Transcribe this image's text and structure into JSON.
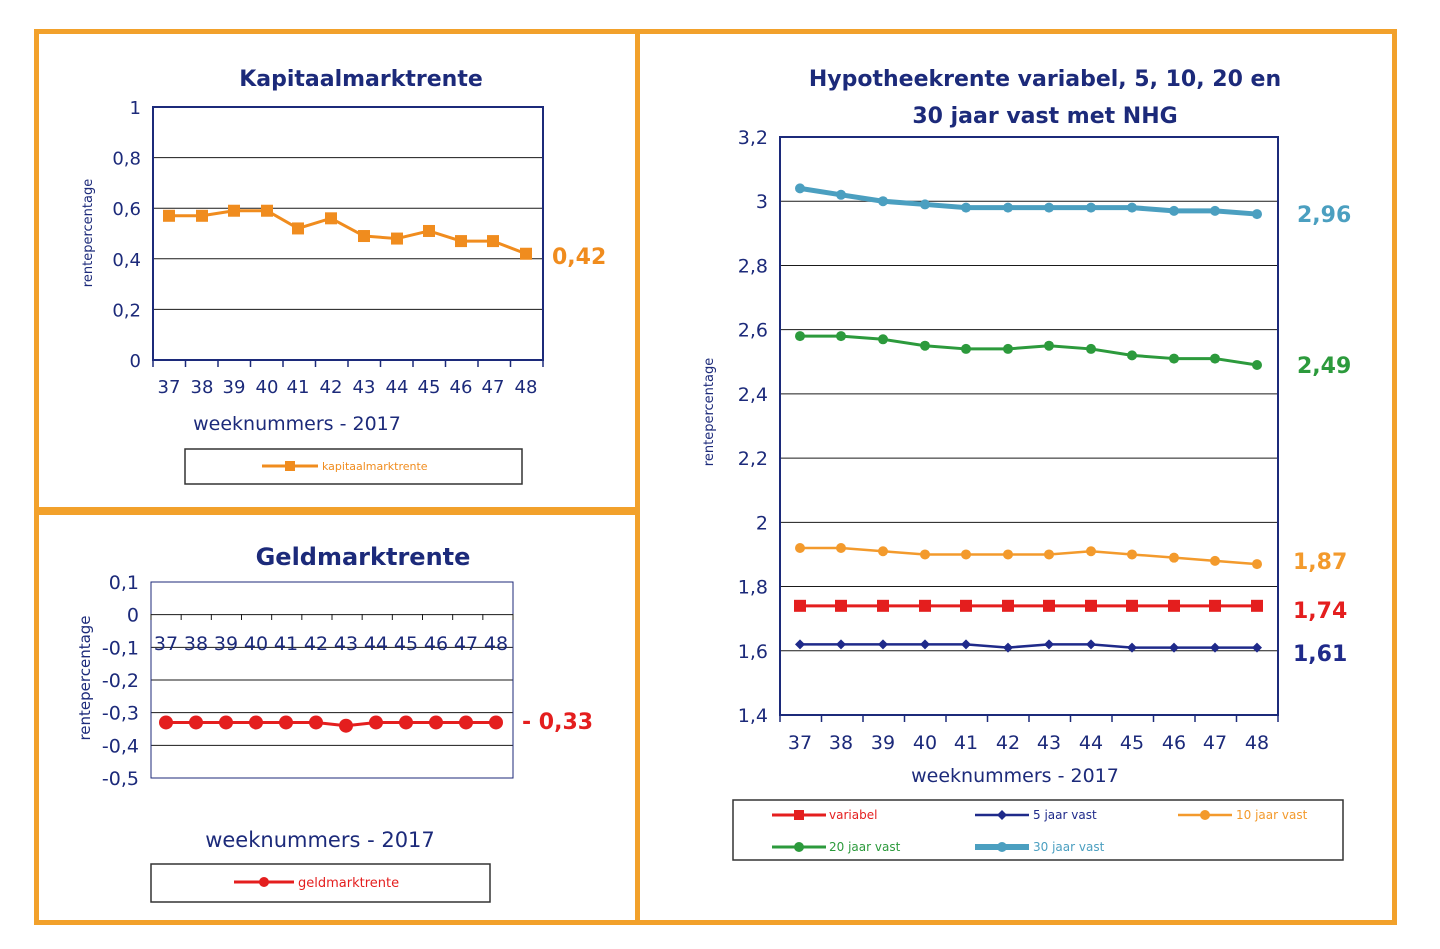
{
  "colors": {
    "frame": "#f2a12b",
    "text": "#1c2a7a",
    "kapitaal": "#f08c1e",
    "geld": "#e41e1e",
    "variabel": "#e41e1e",
    "vast5": "#1f2a8a",
    "vast10": "#f39a2c",
    "vast20": "#2c9a3c",
    "vast30": "#4b9fc0"
  },
  "chart_data": [
    {
      "id": "kapitaal",
      "type": "line",
      "title": "Kapitaalmarktrente",
      "ylabel": "rentepercentage",
      "xlabel": "weeknummers - 2017",
      "categories": [
        "37",
        "38",
        "39",
        "40",
        "41",
        "42",
        "43",
        "44",
        "45",
        "46",
        "47",
        "48"
      ],
      "ylim": [
        0,
        1
      ],
      "yticks": [
        "0",
        "0,2",
        "0,4",
        "0,6",
        "0,8",
        "1"
      ],
      "grid": true,
      "legend_position": "bottom",
      "series": [
        {
          "name": "kapitaalmarktrente",
          "color": "#f08c1e",
          "values": [
            0.57,
            0.57,
            0.59,
            0.59,
            0.52,
            0.56,
            0.49,
            0.48,
            0.51,
            0.47,
            0.47,
            0.42
          ]
        }
      ],
      "end_labels": [
        "0,42"
      ]
    },
    {
      "id": "geld",
      "type": "line",
      "title": "Geldmarktrente",
      "ylabel": "rentepercentage",
      "xlabel": "weeknummers - 2017",
      "categories": [
        "37",
        "38",
        "39",
        "40",
        "41",
        "42",
        "43",
        "44",
        "45",
        "46",
        "47",
        "48"
      ],
      "ylim": [
        -0.5,
        0.1
      ],
      "yticks": [
        "-0,5",
        "-0,4",
        "-0,3",
        "-0,2",
        "-0,1",
        "0",
        "0,1"
      ],
      "grid": true,
      "legend_position": "bottom",
      "series": [
        {
          "name": "geldmarktrente",
          "color": "#e41e1e",
          "values": [
            -0.33,
            -0.33,
            -0.33,
            -0.33,
            -0.33,
            -0.33,
            -0.34,
            -0.33,
            -0.33,
            -0.33,
            -0.33,
            -0.33
          ]
        }
      ],
      "end_labels": [
        "- 0,33"
      ]
    },
    {
      "id": "hypotheek",
      "type": "line",
      "title": "Hypotheekrente variabel, 5, 10, 20 en 30 jaar vast met NHG",
      "title_lines": [
        "Hypotheekrente variabel, 5, 10, 20 en",
        "30 jaar vast met NHG"
      ],
      "ylabel": "rentepercentage",
      "xlabel": "weeknummers - 2017",
      "categories": [
        "37",
        "38",
        "39",
        "40",
        "41",
        "42",
        "43",
        "44",
        "45",
        "46",
        "47",
        "48"
      ],
      "ylim": [
        1.4,
        3.2
      ],
      "yticks": [
        "1,4",
        "1,6",
        "1,8",
        "2",
        "2,2",
        "2,4",
        "2,6",
        "2,8",
        "3",
        "3,2"
      ],
      "grid": true,
      "legend_position": "bottom",
      "series": [
        {
          "name": "variabel",
          "color": "#e41e1e",
          "values": [
            1.74,
            1.74,
            1.74,
            1.74,
            1.74,
            1.74,
            1.74,
            1.74,
            1.74,
            1.74,
            1.74,
            1.74
          ]
        },
        {
          "name": "5 jaar vast",
          "color": "#1f2a8a",
          "values": [
            1.62,
            1.62,
            1.62,
            1.62,
            1.62,
            1.61,
            1.62,
            1.62,
            1.61,
            1.61,
            1.61,
            1.61
          ]
        },
        {
          "name": "10 jaar vast",
          "color": "#f39a2c",
          "values": [
            1.92,
            1.92,
            1.91,
            1.9,
            1.9,
            1.9,
            1.9,
            1.91,
            1.9,
            1.89,
            1.88,
            1.87
          ]
        },
        {
          "name": "20 jaar vast",
          "color": "#2c9a3c",
          "values": [
            2.58,
            2.58,
            2.57,
            2.55,
            2.54,
            2.54,
            2.55,
            2.54,
            2.52,
            2.51,
            2.51,
            2.49
          ]
        },
        {
          "name": "30 jaar vast",
          "color": "#4b9fc0",
          "values": [
            3.04,
            3.02,
            3.0,
            2.99,
            2.98,
            2.98,
            2.98,
            2.98,
            2.98,
            2.97,
            2.97,
            2.96
          ]
        }
      ],
      "end_labels": [
        "1,74",
        "1,61",
        "1,87",
        "2,49",
        "2,96"
      ]
    }
  ]
}
